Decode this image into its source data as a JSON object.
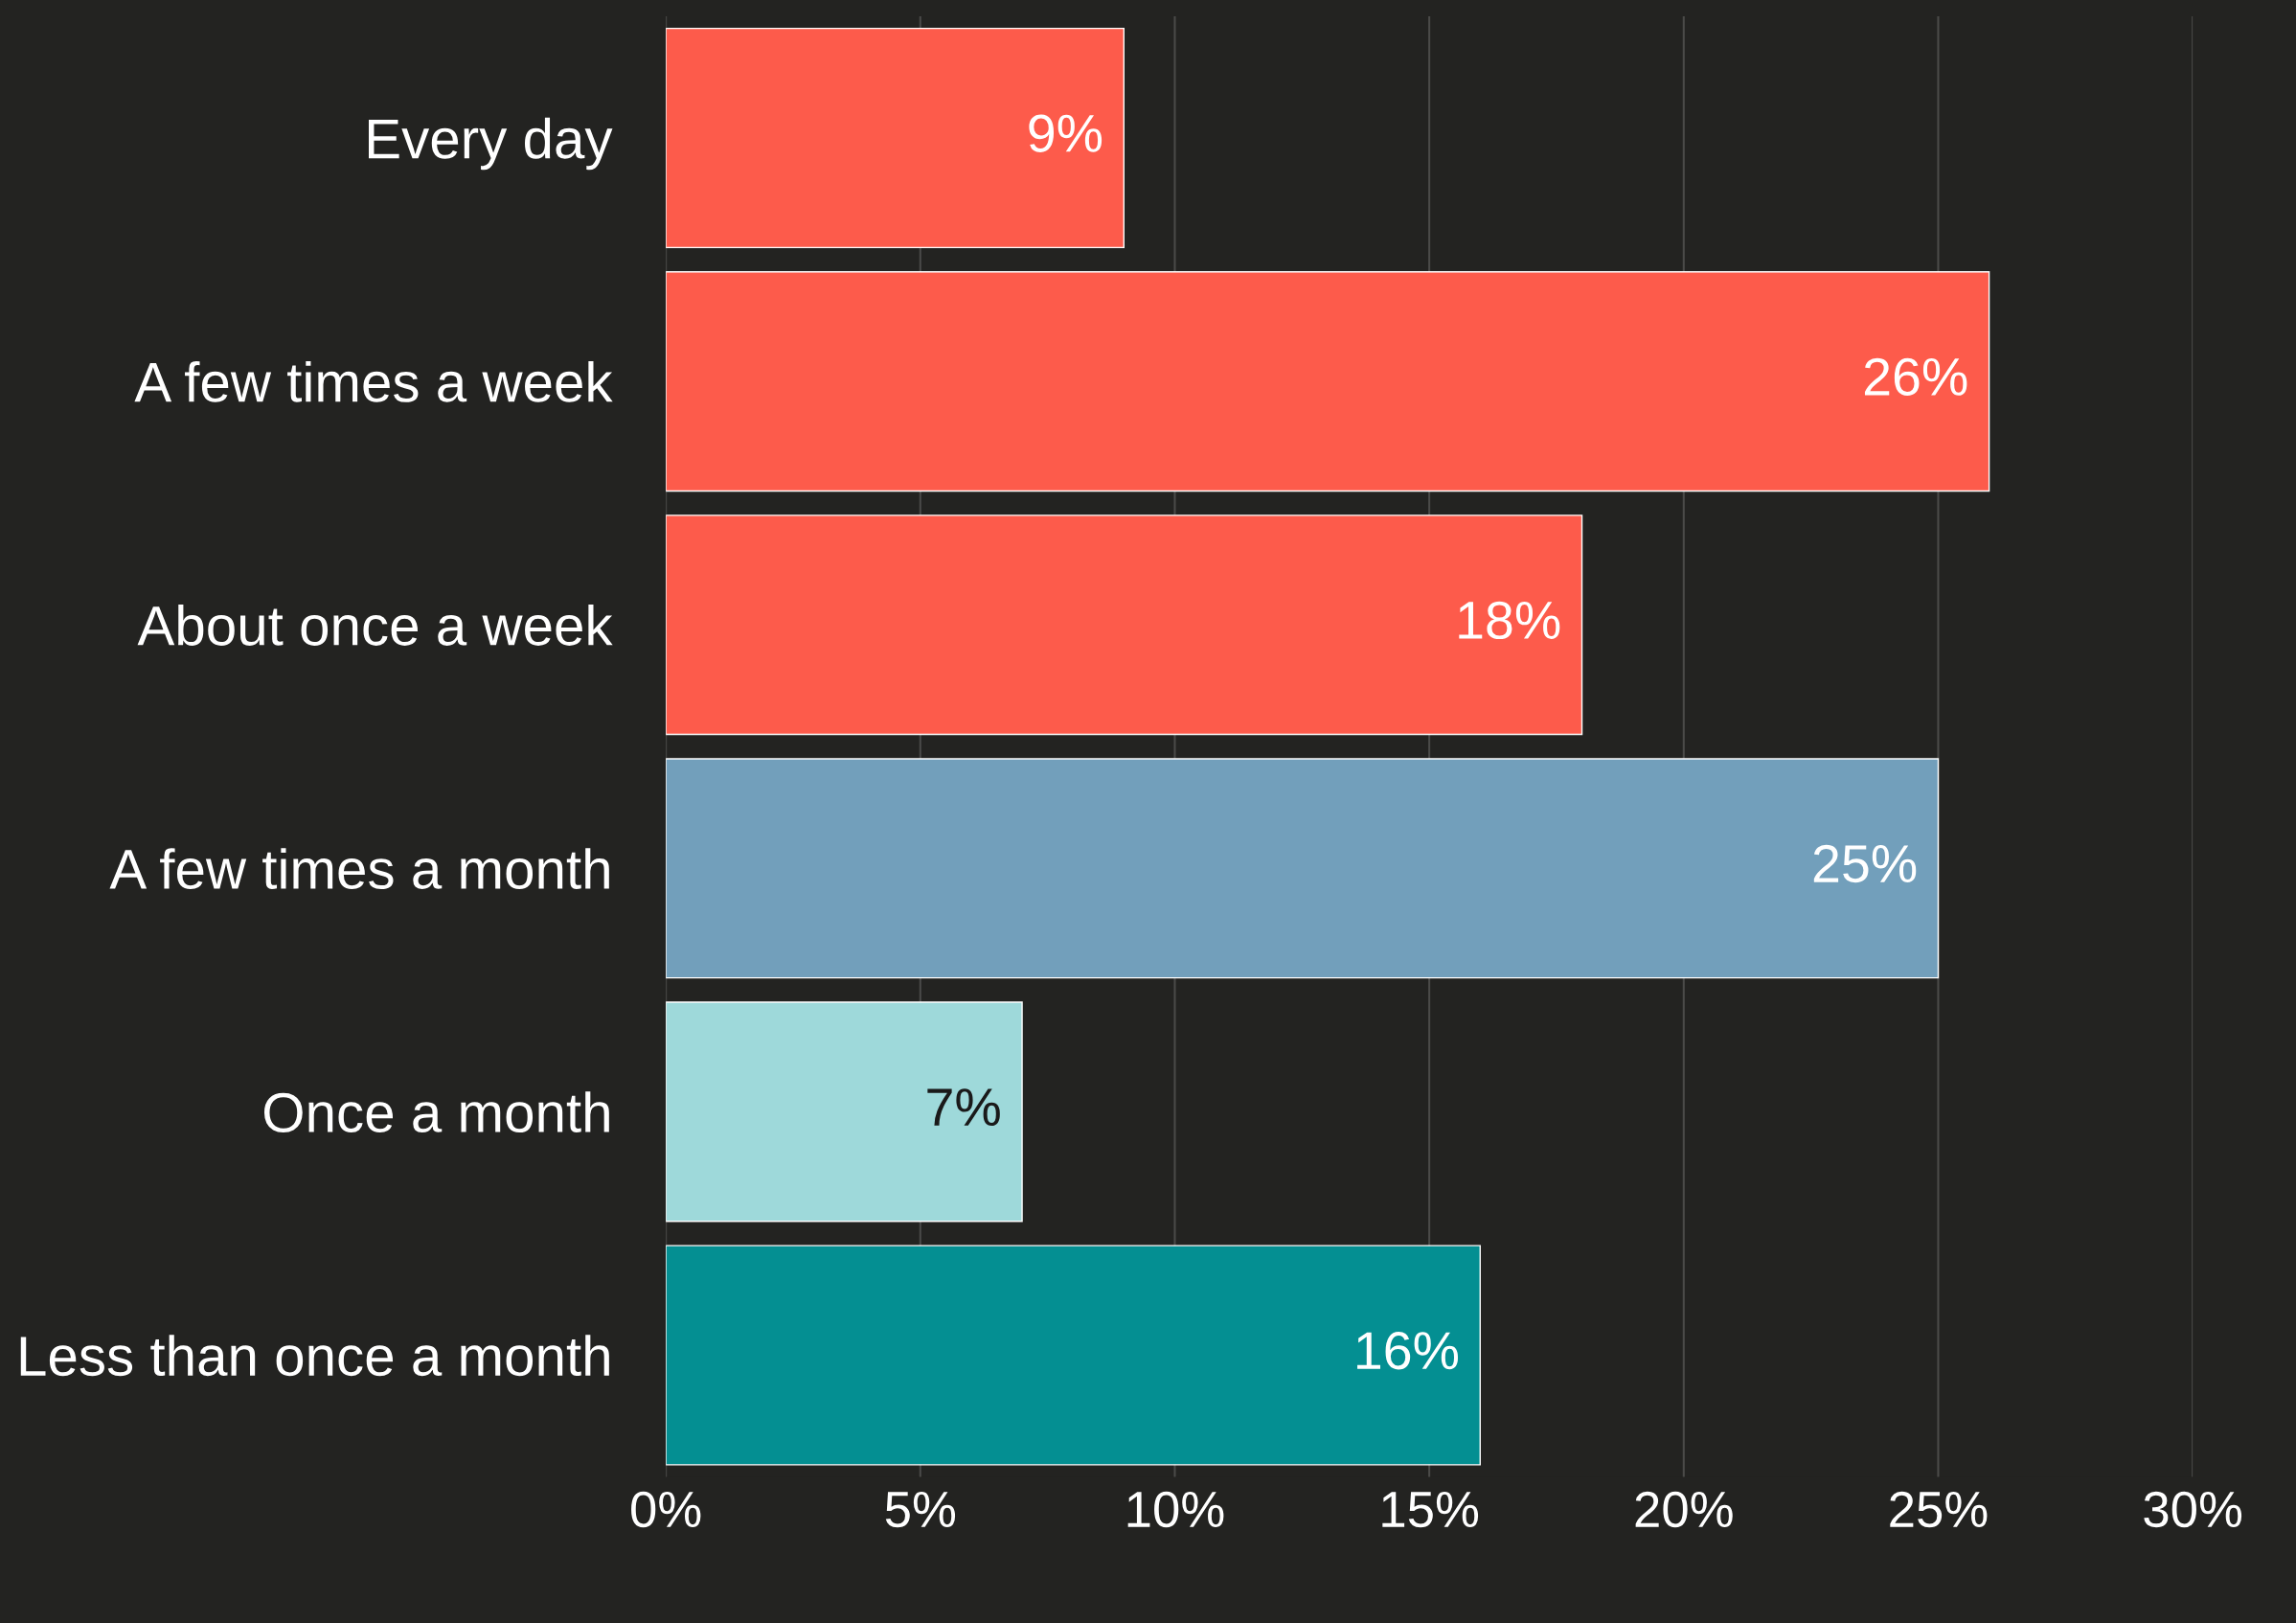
{
  "chart_data": {
    "type": "bar",
    "orientation": "horizontal",
    "categories": [
      "Every day",
      "A few times a week",
      "About once a week",
      "A few times a month",
      "Once a month",
      "Less than once a month"
    ],
    "values": [
      9,
      26,
      18,
      25,
      7,
      16
    ],
    "colors": [
      "#fd5b4b",
      "#fd5b4b",
      "#fd5b4b",
      "#729fbb",
      "#9ed9da",
      "#048f92"
    ],
    "xlim": [
      0,
      30
    ],
    "xticks": [
      {
        "value": 0,
        "label": "0%"
      },
      {
        "value": 5,
        "label": "5%"
      },
      {
        "value": 10,
        "label": "10%"
      },
      {
        "value": 15,
        "label": "15%"
      },
      {
        "value": 20,
        "label": "20%"
      },
      {
        "value": 25,
        "label": "25%"
      },
      {
        "value": 30,
        "label": "30%"
      }
    ],
    "value_labels": [
      "9%",
      "26%",
      "18%",
      "25%",
      "7%",
      "16%"
    ],
    "grid": "x",
    "legend": false
  }
}
